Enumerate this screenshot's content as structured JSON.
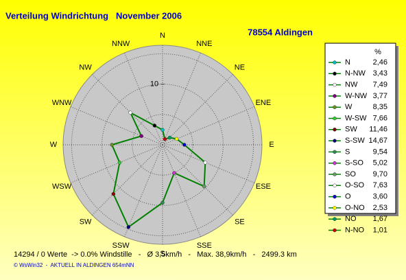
{
  "chart_data": {
    "type": "windrose",
    "title": "Verteilung Windrichtung   November 2006",
    "station": "78554 Aldingen",
    "direction_labels": [
      "N",
      "NNE",
      "NE",
      "ENE",
      "E",
      "ESE",
      "SE",
      "SSE",
      "S",
      "SSW",
      "SW",
      "WSW",
      "W",
      "WNW",
      "NW",
      "NNW"
    ],
    "rlim": [
      0,
      16.4
    ],
    "rticks": [
      10
    ],
    "grid_step": 5,
    "line_color": "#008000",
    "legend_header": "%",
    "angles": [
      0,
      337.5,
      315,
      292.5,
      270,
      247.5,
      225,
      202.5,
      180,
      157.5,
      135,
      112.5,
      90,
      67.5,
      45,
      22.5
    ],
    "series": [
      {
        "name": "N",
        "color": "#00c0c0"
      },
      {
        "name": "N-NW",
        "color": "#000000"
      },
      {
        "name": "NW",
        "color": "#ffffff"
      },
      {
        "name": "W-NW",
        "color": "#800080"
      },
      {
        "name": "W",
        "color": "#6b8e23"
      },
      {
        "name": "W-SW",
        "color": "#33cc33"
      },
      {
        "name": "SW",
        "color": "#800000"
      },
      {
        "name": "S-SW",
        "color": "#000080"
      },
      {
        "name": "S",
        "color": "#2e8b57"
      },
      {
        "name": "S-SO",
        "color": "#cc33cc"
      },
      {
        "name": "SO",
        "color": "#669966"
      },
      {
        "name": "O-SO",
        "color": "#ffffff"
      },
      {
        "name": "O",
        "color": "#0000cc"
      },
      {
        "name": "O-NO",
        "color": "#ffff00"
      },
      {
        "name": "NO",
        "color": "#009966"
      },
      {
        "name": "N-NO",
        "color": "#cc0000"
      }
    ],
    "values": [
      2.46,
      3.43,
      7.49,
      3.77,
      8.35,
      7.66,
      11.46,
      14.67,
      9.54,
      5.02,
      9.7,
      7.63,
      3.6,
      2.53,
      1.67,
      1.01
    ],
    "value_labels": [
      "2,46",
      "3,43",
      "7,49",
      "3,77",
      "8,35",
      "7,66",
      "11,46",
      "14,67",
      "9,54",
      "5,02",
      "9,70",
      "7,63",
      "3,60",
      "2,53",
      "1,67",
      "1,01"
    ],
    "footer": "14294 / 0 Werte  -> 0.0% Windstille   -   Ø 3,5km/h   -   Max. 38,9km/h   -   2499.3 km",
    "credit": "© WsWin32  -  AKTUELL IN ALDINGEN 654mNN"
  }
}
